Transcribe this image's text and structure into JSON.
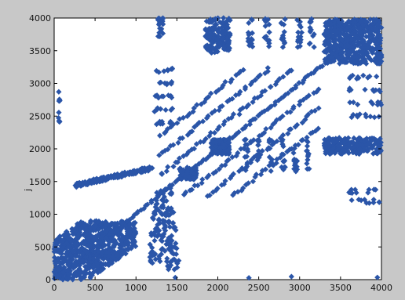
{
  "figure": {
    "background": "#c8c8c8"
  },
  "chart_data": {
    "type": "scatter",
    "title": "",
    "xlabel": "",
    "ylabel": "j",
    "xlim": [
      0,
      4000
    ],
    "ylim": [
      0,
      4000
    ],
    "grid": false,
    "marker": "diamond",
    "color": "#2a55a8",
    "x_ticks": [
      "0",
      "500",
      "1000",
      "1500",
      "2000",
      "2500",
      "3000",
      "3500",
      "4000"
    ],
    "y_ticks": [
      "0",
      "500",
      "1000",
      "1500",
      "2000",
      "2500",
      "3000",
      "3500",
      "4000"
    ],
    "diagonal": {
      "x": [
        0,
        4000
      ],
      "y": [
        0,
        4000
      ]
    },
    "dense_blocks": [
      {
        "x": [
          0,
          1000
        ],
        "y": [
          0,
          850
        ],
        "note": "lower-left triangular cluster"
      },
      {
        "x": [
          1900,
          2150
        ],
        "y": [
          1900,
          2150
        ]
      },
      {
        "x": [
          1500,
          1750
        ],
        "y": [
          1500,
          1750
        ]
      },
      {
        "x": [
          3300,
          4000
        ],
        "y": [
          3300,
          4000
        ]
      },
      {
        "x": [
          1900,
          2150
        ],
        "y": [
          3450,
          4000
        ],
        "note": "upper vertical strip"
      },
      {
        "x": [
          3300,
          4000
        ],
        "y": [
          1900,
          2150
        ],
        "note": "horizontal band"
      }
    ],
    "series": [
      {
        "values_note": "The scatter is a sparsity-like pattern; the script generates representative diamond markers in the regions above plus off-diagonal stripes around x in [1250,3250], y in [1300,3250]."
      }
    ]
  }
}
